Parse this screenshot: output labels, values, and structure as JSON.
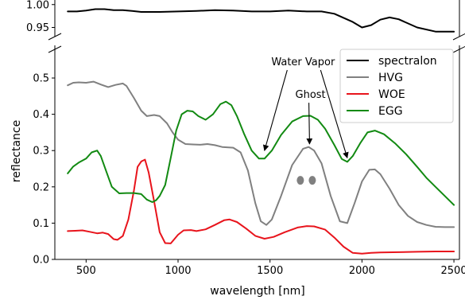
{
  "chart_data": {
    "type": "line",
    "xlabel": "wavelength [nm]",
    "ylabel": "reflectance",
    "xlim": [
      330,
      2530
    ],
    "x_ticks": [
      500,
      1000,
      1500,
      2000,
      2500
    ],
    "broken_y_axis": true,
    "upper_panel": {
      "ylim": [
        0.93,
        1.01
      ],
      "y_ticks": [
        0.95,
        1.0
      ],
      "y_tick_labels": [
        "0.95",
        "1.00"
      ]
    },
    "lower_panel": {
      "ylim": [
        0.0,
        0.59
      ],
      "y_ticks": [
        0.0,
        0.1,
        0.2,
        0.3,
        0.4,
        0.5
      ],
      "y_tick_labels": [
        "0.0",
        "0.1",
        "0.2",
        "0.3",
        "0.4",
        "0.5"
      ]
    },
    "legend_position": "top-right",
    "series": [
      {
        "name": "spectralon",
        "color": "#000000",
        "panel": "upper",
        "points": [
          [
            400,
            0.985
          ],
          [
            450,
            0.985
          ],
          [
            500,
            0.987
          ],
          [
            550,
            0.99
          ],
          [
            600,
            0.99
          ],
          [
            650,
            0.988
          ],
          [
            700,
            0.988
          ],
          [
            750,
            0.986
          ],
          [
            800,
            0.984
          ],
          [
            900,
            0.984
          ],
          [
            1000,
            0.985
          ],
          [
            1100,
            0.986
          ],
          [
            1200,
            0.988
          ],
          [
            1300,
            0.987
          ],
          [
            1400,
            0.985
          ],
          [
            1500,
            0.985
          ],
          [
            1600,
            0.987
          ],
          [
            1700,
            0.985
          ],
          [
            1780,
            0.985
          ],
          [
            1850,
            0.98
          ],
          [
            1950,
            0.962
          ],
          [
            2000,
            0.95
          ],
          [
            2050,
            0.955
          ],
          [
            2100,
            0.967
          ],
          [
            2150,
            0.972
          ],
          [
            2200,
            0.968
          ],
          [
            2300,
            0.95
          ],
          [
            2400,
            0.941
          ],
          [
            2500,
            0.941
          ]
        ]
      },
      {
        "name": "HVG",
        "color": "#808080",
        "panel": "lower",
        "points": [
          [
            400,
            0.48
          ],
          [
            430,
            0.487
          ],
          [
            460,
            0.488
          ],
          [
            500,
            0.487
          ],
          [
            540,
            0.49
          ],
          [
            580,
            0.482
          ],
          [
            620,
            0.475
          ],
          [
            660,
            0.481
          ],
          [
            700,
            0.485
          ],
          [
            720,
            0.478
          ],
          [
            760,
            0.445
          ],
          [
            800,
            0.41
          ],
          [
            830,
            0.395
          ],
          [
            870,
            0.398
          ],
          [
            900,
            0.395
          ],
          [
            940,
            0.375
          ],
          [
            970,
            0.35
          ],
          [
            1000,
            0.33
          ],
          [
            1040,
            0.318
          ],
          [
            1080,
            0.317
          ],
          [
            1120,
            0.316
          ],
          [
            1160,
            0.318
          ],
          [
            1200,
            0.315
          ],
          [
            1240,
            0.31
          ],
          [
            1300,
            0.308
          ],
          [
            1340,
            0.295
          ],
          [
            1380,
            0.245
          ],
          [
            1420,
            0.155
          ],
          [
            1450,
            0.105
          ],
          [
            1480,
            0.095
          ],
          [
            1510,
            0.11
          ],
          [
            1560,
            0.175
          ],
          [
            1620,
            0.26
          ],
          [
            1680,
            0.305
          ],
          [
            1710,
            0.31
          ],
          [
            1740,
            0.3
          ],
          [
            1780,
            0.265
          ],
          [
            1830,
            0.175
          ],
          [
            1880,
            0.105
          ],
          [
            1920,
            0.1
          ],
          [
            1960,
            0.155
          ],
          [
            2000,
            0.215
          ],
          [
            2040,
            0.247
          ],
          [
            2070,
            0.248
          ],
          [
            2100,
            0.235
          ],
          [
            2150,
            0.195
          ],
          [
            2200,
            0.15
          ],
          [
            2250,
            0.12
          ],
          [
            2300,
            0.103
          ],
          [
            2350,
            0.095
          ],
          [
            2400,
            0.09
          ],
          [
            2450,
            0.089
          ],
          [
            2500,
            0.089
          ]
        ]
      },
      {
        "name": "WOE",
        "color": "#e8141c",
        "panel": "lower",
        "points": [
          [
            400,
            0.078
          ],
          [
            440,
            0.079
          ],
          [
            480,
            0.08
          ],
          [
            520,
            0.076
          ],
          [
            560,
            0.072
          ],
          [
            590,
            0.074
          ],
          [
            620,
            0.07
          ],
          [
            650,
            0.056
          ],
          [
            670,
            0.054
          ],
          [
            700,
            0.065
          ],
          [
            730,
            0.11
          ],
          [
            760,
            0.19
          ],
          [
            780,
            0.255
          ],
          [
            800,
            0.27
          ],
          [
            820,
            0.275
          ],
          [
            840,
            0.24
          ],
          [
            870,
            0.16
          ],
          [
            900,
            0.075
          ],
          [
            930,
            0.045
          ],
          [
            960,
            0.044
          ],
          [
            1000,
            0.068
          ],
          [
            1030,
            0.08
          ],
          [
            1070,
            0.081
          ],
          [
            1100,
            0.078
          ],
          [
            1150,
            0.083
          ],
          [
            1200,
            0.095
          ],
          [
            1250,
            0.108
          ],
          [
            1280,
            0.11
          ],
          [
            1320,
            0.103
          ],
          [
            1370,
            0.085
          ],
          [
            1420,
            0.065
          ],
          [
            1470,
            0.057
          ],
          [
            1520,
            0.062
          ],
          [
            1580,
            0.075
          ],
          [
            1650,
            0.088
          ],
          [
            1700,
            0.092
          ],
          [
            1740,
            0.091
          ],
          [
            1800,
            0.082
          ],
          [
            1850,
            0.06
          ],
          [
            1900,
            0.035
          ],
          [
            1950,
            0.018
          ],
          [
            2000,
            0.016
          ],
          [
            2050,
            0.018
          ],
          [
            2100,
            0.019
          ],
          [
            2200,
            0.02
          ],
          [
            2300,
            0.021
          ],
          [
            2400,
            0.022
          ],
          [
            2500,
            0.022
          ]
        ]
      },
      {
        "name": "EGG",
        "color": "#128a12",
        "panel": "lower",
        "points": [
          [
            400,
            0.237
          ],
          [
            430,
            0.256
          ],
          [
            460,
            0.267
          ],
          [
            500,
            0.278
          ],
          [
            530,
            0.295
          ],
          [
            560,
            0.3
          ],
          [
            580,
            0.285
          ],
          [
            610,
            0.242
          ],
          [
            640,
            0.2
          ],
          [
            680,
            0.182
          ],
          [
            720,
            0.183
          ],
          [
            760,
            0.183
          ],
          [
            800,
            0.18
          ],
          [
            830,
            0.165
          ],
          [
            860,
            0.158
          ],
          [
            880,
            0.163
          ],
          [
            900,
            0.175
          ],
          [
            930,
            0.205
          ],
          [
            960,
            0.28
          ],
          [
            990,
            0.355
          ],
          [
            1020,
            0.4
          ],
          [
            1050,
            0.41
          ],
          [
            1080,
            0.408
          ],
          [
            1110,
            0.395
          ],
          [
            1150,
            0.385
          ],
          [
            1190,
            0.4
          ],
          [
            1230,
            0.428
          ],
          [
            1260,
            0.435
          ],
          [
            1290,
            0.425
          ],
          [
            1320,
            0.395
          ],
          [
            1360,
            0.345
          ],
          [
            1400,
            0.3
          ],
          [
            1440,
            0.278
          ],
          [
            1470,
            0.278
          ],
          [
            1510,
            0.3
          ],
          [
            1560,
            0.343
          ],
          [
            1620,
            0.38
          ],
          [
            1680,
            0.395
          ],
          [
            1720,
            0.396
          ],
          [
            1760,
            0.385
          ],
          [
            1800,
            0.36
          ],
          [
            1850,
            0.315
          ],
          [
            1890,
            0.277
          ],
          [
            1920,
            0.269
          ],
          [
            1950,
            0.285
          ],
          [
            1990,
            0.32
          ],
          [
            2030,
            0.35
          ],
          [
            2070,
            0.355
          ],
          [
            2120,
            0.345
          ],
          [
            2180,
            0.32
          ],
          [
            2240,
            0.29
          ],
          [
            2300,
            0.255
          ],
          [
            2350,
            0.225
          ],
          [
            2400,
            0.2
          ],
          [
            2450,
            0.175
          ],
          [
            2500,
            0.15
          ]
        ]
      }
    ],
    "annotations": [
      {
        "text": "Water Vapor",
        "x": 1680,
        "y": 0.535,
        "arrows_to": [
          [
            1470,
            0.3
          ],
          [
            1920,
            0.28
          ]
        ]
      },
      {
        "text": "Ghost",
        "x": 1720,
        "y": 0.445,
        "arrows_to": [
          [
            1715,
            0.318
          ]
        ]
      }
    ],
    "markers": [
      {
        "x": 1665,
        "y": 0.218,
        "color": "#808080"
      },
      {
        "x": 1730,
        "y": 0.218,
        "color": "#808080"
      }
    ]
  }
}
